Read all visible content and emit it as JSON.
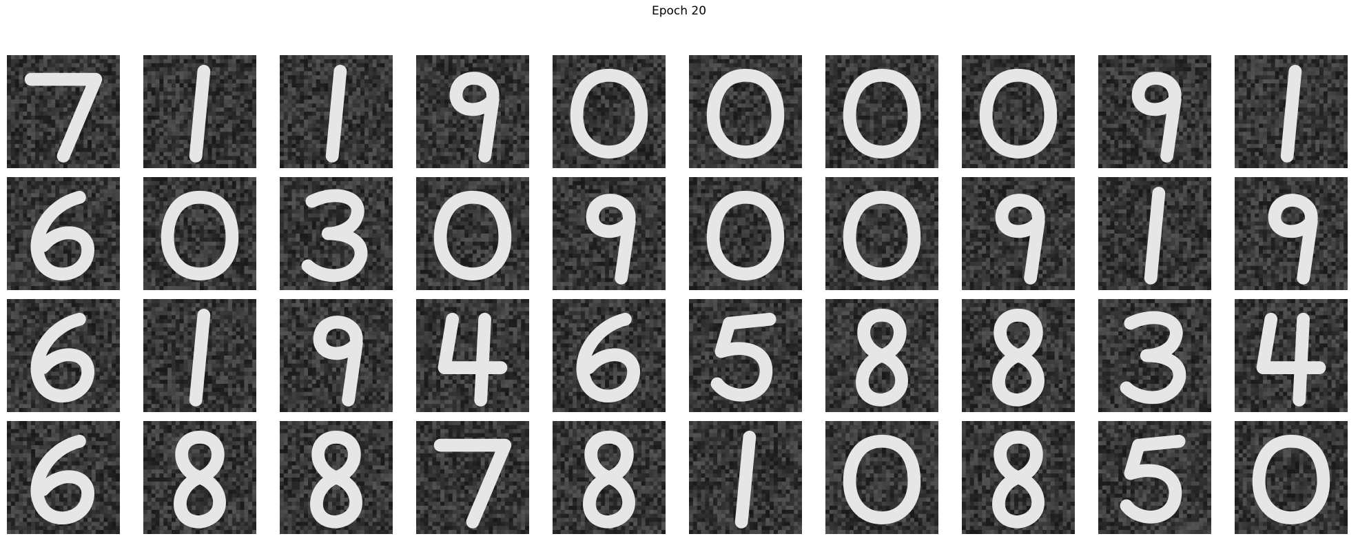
{
  "title": "Epoch 20",
  "grid": {
    "rows": 4,
    "cols": 10,
    "digits": [
      [
        "7",
        "1",
        "1",
        "9",
        "0",
        "0",
        "0",
        "0",
        "9",
        "1"
      ],
      [
        "6",
        "0",
        "3",
        "0",
        "9",
        "0",
        "0",
        "9",
        "1",
        "9"
      ],
      [
        "6",
        "1",
        "9",
        "4",
        "6",
        "5",
        "8",
        "8",
        "3",
        "4"
      ],
      [
        "6",
        "8",
        "8",
        "7",
        "8",
        "1",
        "0",
        "8",
        "5",
        "0"
      ]
    ]
  }
}
